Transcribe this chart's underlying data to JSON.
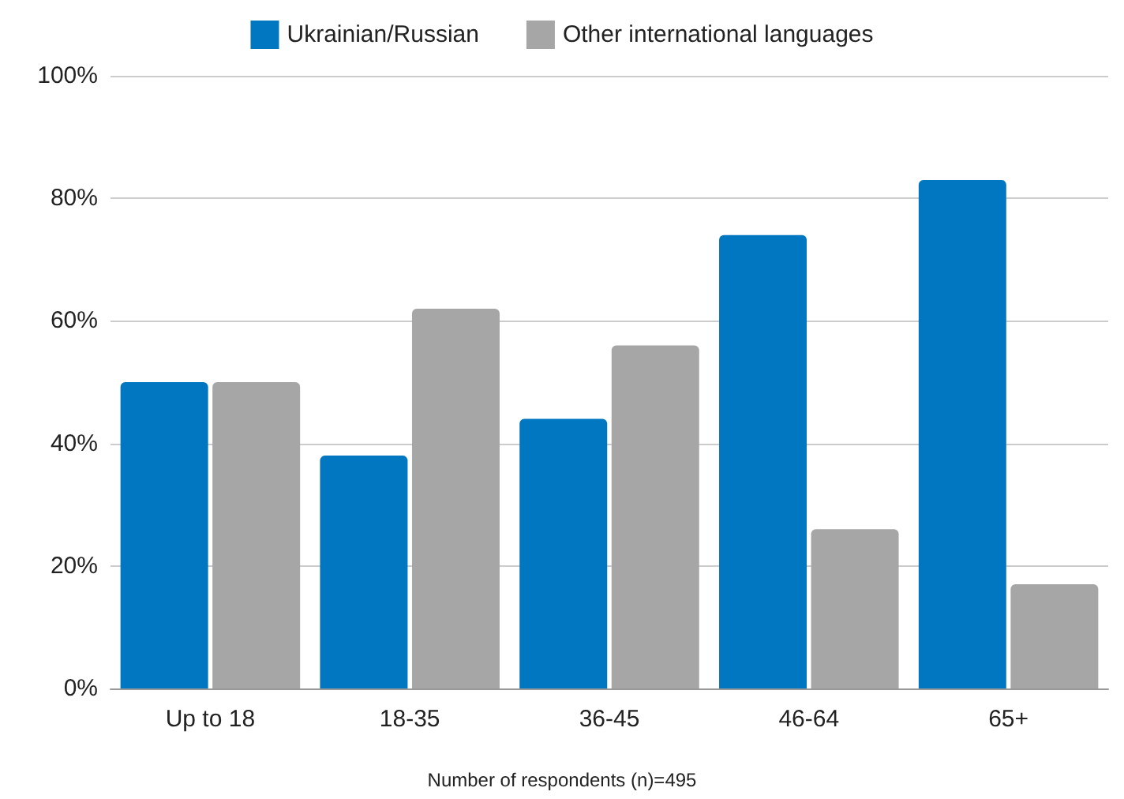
{
  "chart_data": {
    "type": "bar",
    "categories": [
      "Up to 18",
      "18-35",
      "36-45",
      "46-64",
      "65+"
    ],
    "series": [
      {
        "name": "Ukrainian/Russian",
        "color": "#0077c0",
        "values": [
          50,
          38,
          44,
          74,
          83
        ]
      },
      {
        "name": "Other international languages",
        "color": "#a6a6a6",
        "values": [
          50,
          62,
          56,
          26,
          17
        ]
      }
    ],
    "ylim": [
      0,
      100
    ],
    "yticks": [
      {
        "value": 0,
        "label": "0%"
      },
      {
        "value": 20,
        "label": "20%"
      },
      {
        "value": 40,
        "label": "40%"
      },
      {
        "value": 60,
        "label": "60%"
      },
      {
        "value": 80,
        "label": "80%"
      },
      {
        "value": 100,
        "label": "100%"
      }
    ],
    "grid": "y",
    "legend": "top",
    "annotations": [
      "Number of respondents (n)=495"
    ]
  }
}
